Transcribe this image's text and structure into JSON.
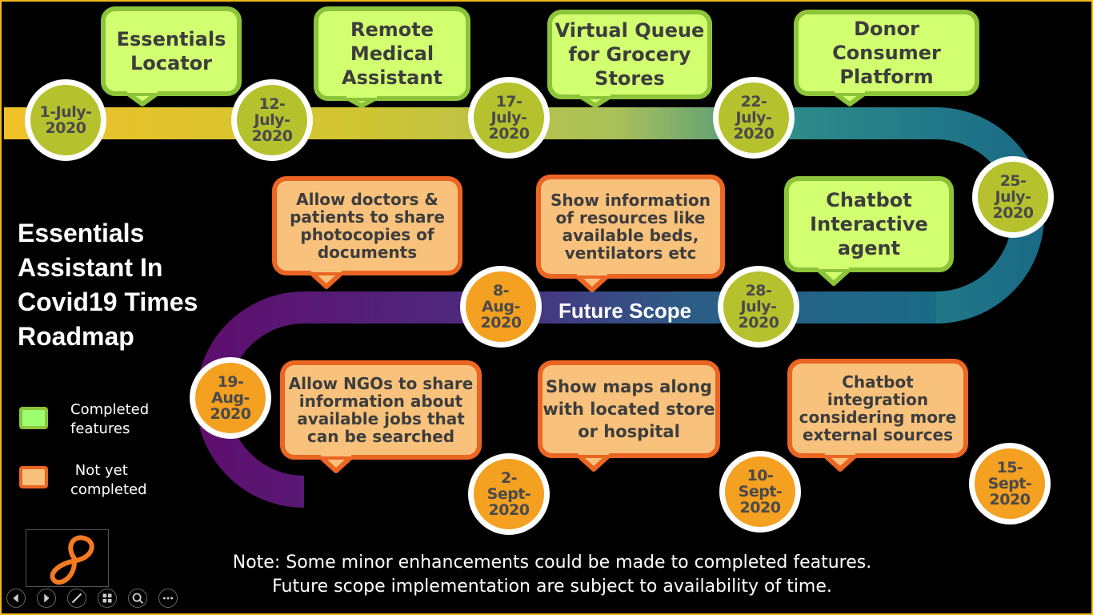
{
  "title_lines": [
    "Essentials",
    "Assistant In",
    "Covid19 Times",
    "Roadmap"
  ],
  "colors": {
    "completed_fill": "#d2ff70",
    "completed_border": "#8cc43a",
    "pending_fill": "#f8c27c",
    "pending_border": "#eb6523",
    "completed_node": "#b5c22d",
    "pending_node": "#f4a020"
  },
  "milestones": [
    {
      "date": "1-July-\n2020",
      "status": "completed"
    },
    {
      "date": "12-\nJuly-\n2020",
      "status": "completed"
    },
    {
      "date": "17-\nJuly-\n2020",
      "status": "completed"
    },
    {
      "date": "22-\nJuly-\n2020",
      "status": "completed"
    },
    {
      "date": "25-\nJuly-\n2020",
      "status": "completed"
    },
    {
      "date": "28-\nJuly-\n2020",
      "status": "completed"
    },
    {
      "date": "8-\nAug-\n2020",
      "status": "pending"
    },
    {
      "date": "19-\nAug-\n2020",
      "status": "pending"
    },
    {
      "date": "2-\nSept-\n2020",
      "status": "pending"
    },
    {
      "date": "10-\nSept-\n2020",
      "status": "pending"
    },
    {
      "date": "15-\nSept-\n2020",
      "status": "pending"
    }
  ],
  "features": [
    {
      "label": "Essentials Locator",
      "status": "completed"
    },
    {
      "label": "Remote Medical Assistant",
      "status": "completed"
    },
    {
      "label": "Virtual Queue for Grocery Stores",
      "status": "completed"
    },
    {
      "label": "Donor Consumer Platform",
      "status": "completed"
    },
    {
      "label": "Chatbot Interactive agent",
      "status": "completed"
    },
    {
      "label": "Allow doctors & patients to share photocopies of documents",
      "status": "pending"
    },
    {
      "label": "Show information of resources like available beds, ventilators etc",
      "status": "pending"
    },
    {
      "label": "Allow NGOs to share information about available jobs that can be searched",
      "status": "pending"
    },
    {
      "label": "Show maps along with located store or hospital",
      "status": "pending"
    },
    {
      "label": "Chatbot integration considering more external sources",
      "status": "pending"
    }
  ],
  "future_scope_label": "Future Scope",
  "legend": {
    "completed": "Completed\nfeatures",
    "pending": " Not yet\ncompleted"
  },
  "note_lines": [
    "Note: Some minor enhancements could be made to completed features.",
    "Future scope implementation are subject to availability of time."
  ],
  "controls": [
    "previous-icon",
    "next-icon",
    "pen-icon",
    "slides-grid-icon",
    "zoom-icon",
    "more-icon"
  ]
}
